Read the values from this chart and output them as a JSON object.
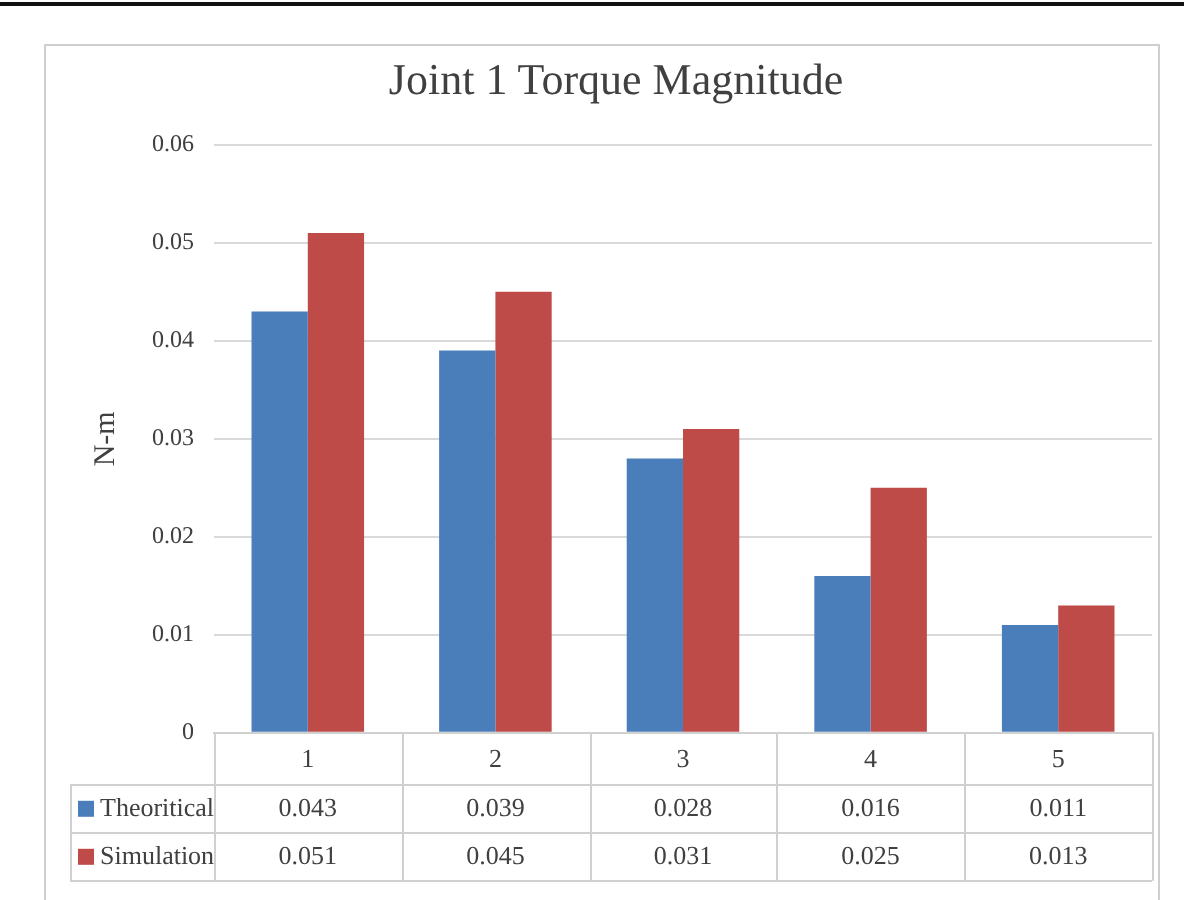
{
  "chart_data": {
    "type": "bar",
    "title": "Joint 1 Torque Magnitude",
    "ylabel": "N-m",
    "categories": [
      "1",
      "2",
      "3",
      "4",
      "5"
    ],
    "series": [
      {
        "name": "Theoritical",
        "color": "#4a7ebb",
        "values": [
          0.043,
          0.039,
          0.028,
          0.016,
          0.011
        ]
      },
      {
        "name": "Simulation",
        "color": "#be4b48",
        "values": [
          0.051,
          0.045,
          0.031,
          0.025,
          0.013
        ]
      }
    ],
    "ylim": [
      0,
      0.06
    ],
    "yticks": [
      0,
      0.01,
      0.02,
      0.03,
      0.04,
      0.05,
      0.06
    ],
    "grid": "y",
    "legend": "bottom",
    "data_labels": true
  }
}
